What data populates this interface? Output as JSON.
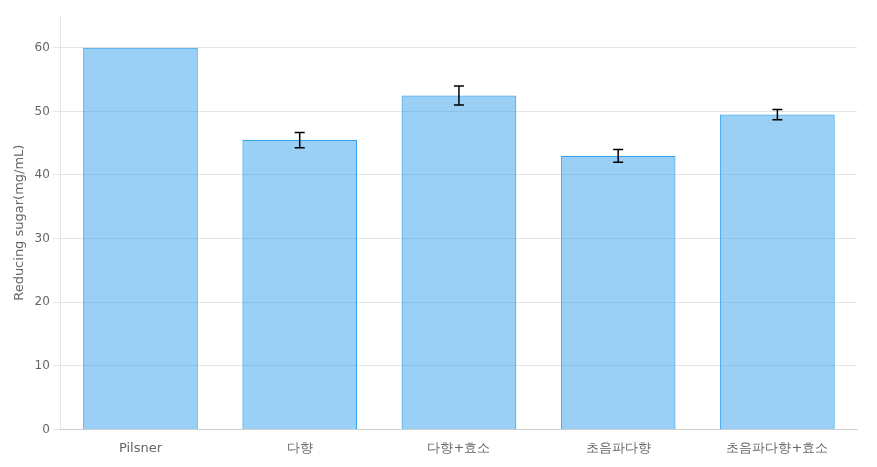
{
  "chart_data": {
    "type": "bar",
    "categories": [
      "Pilsner",
      "다향",
      "다향+효소",
      "초음파다향",
      "초음파다향+효소"
    ],
    "values": [
      60.0,
      45.5,
      52.5,
      43.0,
      49.5
    ],
    "errors": [
      0.0,
      1.2,
      1.5,
      1.0,
      0.8
    ],
    "ylabel": "Reducing sugar(mg/mL)",
    "ylim": [
      0,
      65
    ],
    "yticks": [
      0,
      10,
      20,
      30,
      40,
      50,
      60
    ],
    "grid": true
  }
}
